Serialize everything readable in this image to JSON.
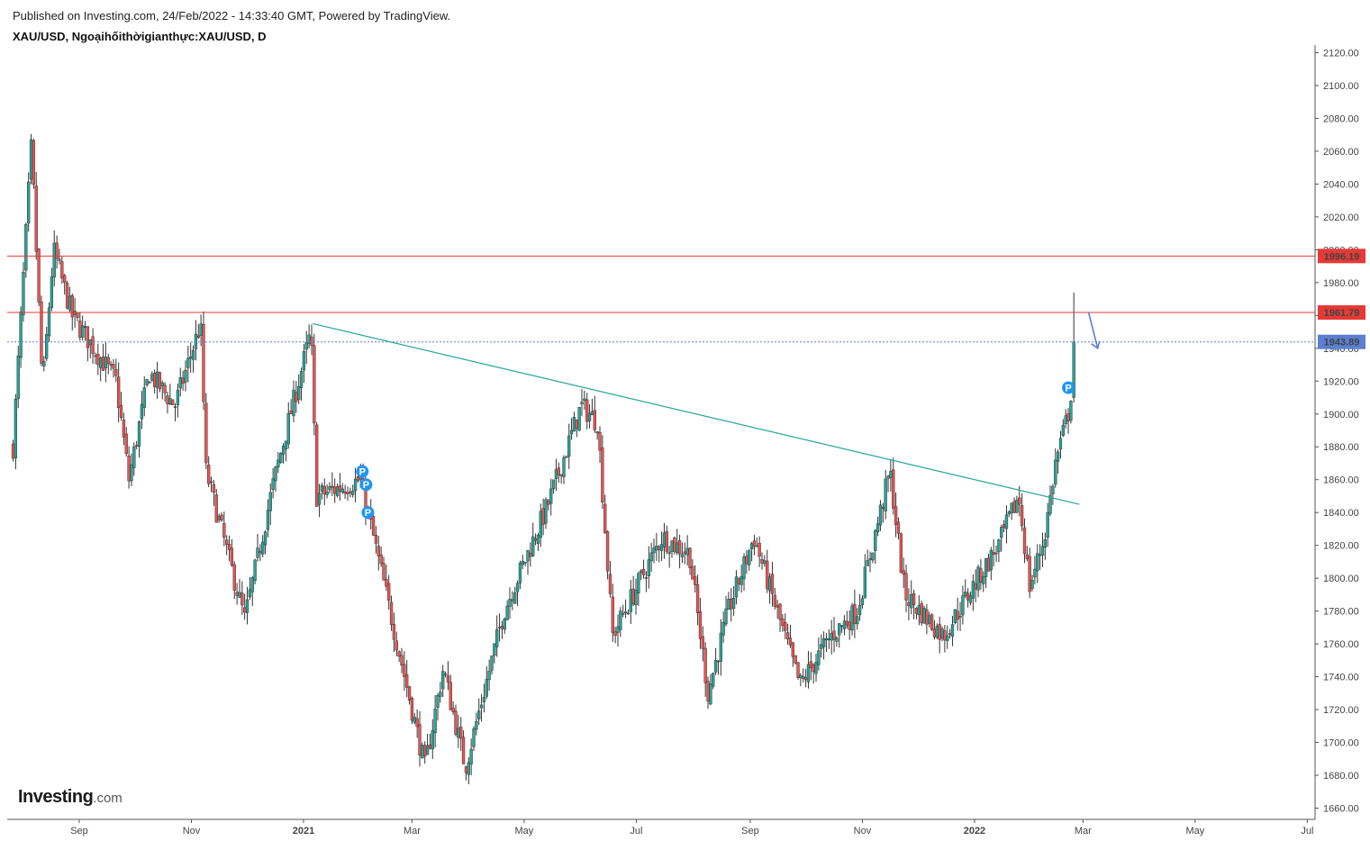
{
  "header": {
    "published": "Published on Investing.com, 24/Feb/2022 - 14:33:40 GMT, Powered by TradingView.",
    "title": "XAU/USD, Ngoạihốithờigianthực:XAU/USD, D"
  },
  "logo": {
    "brand": "Investing",
    "suffix": ".com"
  },
  "colors": {
    "up": "#26a69a",
    "down": "#ef5350",
    "wick": "#333333",
    "resistance": "#e53935",
    "trendline": "#26a69a",
    "current_price": "#5b7fd1",
    "marker": "#2196f3"
  },
  "chart_data": {
    "type": "candlestick",
    "symbol": "XAU/USD",
    "timeframe": "D",
    "ylim": [
      1655,
      2125
    ],
    "y_ticks": [
      "2120.00",
      "2100.00",
      "2080.00",
      "2060.00",
      "2040.00",
      "2020.00",
      "2000.00",
      "1980.00",
      "1960.00",
      "1940.00",
      "1920.00",
      "1900.00",
      "1880.00",
      "1860.00",
      "1840.00",
      "1820.00",
      "1800.00",
      "1780.00",
      "1760.00",
      "1740.00",
      "1720.00",
      "1700.00",
      "1680.00",
      "1660.00"
    ],
    "x_ticks": [
      {
        "label": "Sep",
        "date": "2020-09-01",
        "bold": false
      },
      {
        "label": "Nov",
        "date": "2020-11-01",
        "bold": false
      },
      {
        "label": "2021",
        "date": "2021-01-01",
        "bold": true
      },
      {
        "label": "Mar",
        "date": "2021-03-01",
        "bold": false
      },
      {
        "label": "May",
        "date": "2021-05-01",
        "bold": false
      },
      {
        "label": "Jul",
        "date": "2021-07-01",
        "bold": false
      },
      {
        "label": "Sep",
        "date": "2021-09-01",
        "bold": false
      },
      {
        "label": "Nov",
        "date": "2021-11-01",
        "bold": false
      },
      {
        "label": "2022",
        "date": "2022-01-01",
        "bold": true
      },
      {
        "label": "Mar",
        "date": "2022-03-01",
        "bold": false
      },
      {
        "label": "May",
        "date": "2022-05-01",
        "bold": false
      },
      {
        "label": "Jul",
        "date": "2022-07-01",
        "bold": false
      }
    ],
    "price_path": [
      {
        "date": "2020-07-27",
        "close": 1880
      },
      {
        "date": "2020-08-06",
        "close": 2065
      },
      {
        "date": "2020-08-12",
        "close": 1915
      },
      {
        "date": "2020-08-18",
        "close": 2000
      },
      {
        "date": "2020-08-28",
        "close": 1960
      },
      {
        "date": "2020-09-21",
        "close": 1920
      },
      {
        "date": "2020-09-28",
        "close": 1860
      },
      {
        "date": "2020-10-09",
        "close": 1925
      },
      {
        "date": "2020-10-23",
        "close": 1905
      },
      {
        "date": "2020-11-06",
        "close": 1955
      },
      {
        "date": "2020-11-09",
        "close": 1865
      },
      {
        "date": "2020-11-30",
        "close": 1775
      },
      {
        "date": "2020-12-16",
        "close": 1860
      },
      {
        "date": "2021-01-05",
        "close": 1950
      },
      {
        "date": "2021-01-08",
        "close": 1850
      },
      {
        "date": "2021-02-01",
        "close": 1860
      },
      {
        "date": "2021-02-18",
        "close": 1775
      },
      {
        "date": "2021-03-08",
        "close": 1685
      },
      {
        "date": "2021-03-18",
        "close": 1745
      },
      {
        "date": "2021-03-30",
        "close": 1685
      },
      {
        "date": "2021-04-20",
        "close": 1780
      },
      {
        "date": "2021-05-14",
        "close": 1845
      },
      {
        "date": "2021-06-01",
        "close": 1905
      },
      {
        "date": "2021-06-10",
        "close": 1895
      },
      {
        "date": "2021-06-18",
        "close": 1765
      },
      {
        "date": "2021-07-15",
        "close": 1825
      },
      {
        "date": "2021-07-30",
        "close": 1815
      },
      {
        "date": "2021-08-09",
        "close": 1730
      },
      {
        "date": "2021-08-20",
        "close": 1780
      },
      {
        "date": "2021-09-03",
        "close": 1825
      },
      {
        "date": "2021-09-28",
        "close": 1735
      },
      {
        "date": "2021-10-15",
        "close": 1765
      },
      {
        "date": "2021-10-29",
        "close": 1780
      },
      {
        "date": "2021-11-16",
        "close": 1865
      },
      {
        "date": "2021-11-24",
        "close": 1790
      },
      {
        "date": "2021-12-15",
        "close": 1765
      },
      {
        "date": "2022-01-03",
        "close": 1800
      },
      {
        "date": "2022-01-14",
        "close": 1820
      },
      {
        "date": "2022-01-25",
        "close": 1850
      },
      {
        "date": "2022-01-31",
        "close": 1795
      },
      {
        "date": "2022-02-08",
        "close": 1825
      },
      {
        "date": "2022-02-14",
        "close": 1870
      },
      {
        "date": "2022-02-22",
        "close": 1905
      },
      {
        "date": "2022-02-24",
        "close": 1943.89
      }
    ],
    "last_candle": {
      "date": "2022-02-24",
      "open": 1910,
      "high": 1974,
      "low": 1907,
      "close": 1943.89
    },
    "horizontal_lines": [
      {
        "label": "1996.19",
        "value": 1996.19,
        "color": "#e53935",
        "style": "solid"
      },
      {
        "label": "1961.79",
        "value": 1961.79,
        "color": "#e53935",
        "style": "solid"
      },
      {
        "label": "1943.89",
        "value": 1943.89,
        "color": "#5b7fd1",
        "style": "dotted"
      }
    ],
    "trendline": {
      "start": {
        "date": "2021-01-06",
        "value": 1955
      },
      "end": {
        "date": "2022-02-27",
        "value": 1845
      }
    },
    "markers": [
      {
        "date": "2021-02-02",
        "value": 1865,
        "label": "P"
      },
      {
        "date": "2021-02-04",
        "value": 1857,
        "label": "P"
      },
      {
        "date": "2021-02-05",
        "value": 1840,
        "label": "P"
      },
      {
        "date": "2022-02-21",
        "value": 1916,
        "label": "P"
      }
    ],
    "arrow": {
      "start": {
        "date": "2022-03-04",
        "value": 1962
      },
      "end": {
        "date": "2022-03-09",
        "value": 1940
      },
      "direction": "down"
    }
  }
}
